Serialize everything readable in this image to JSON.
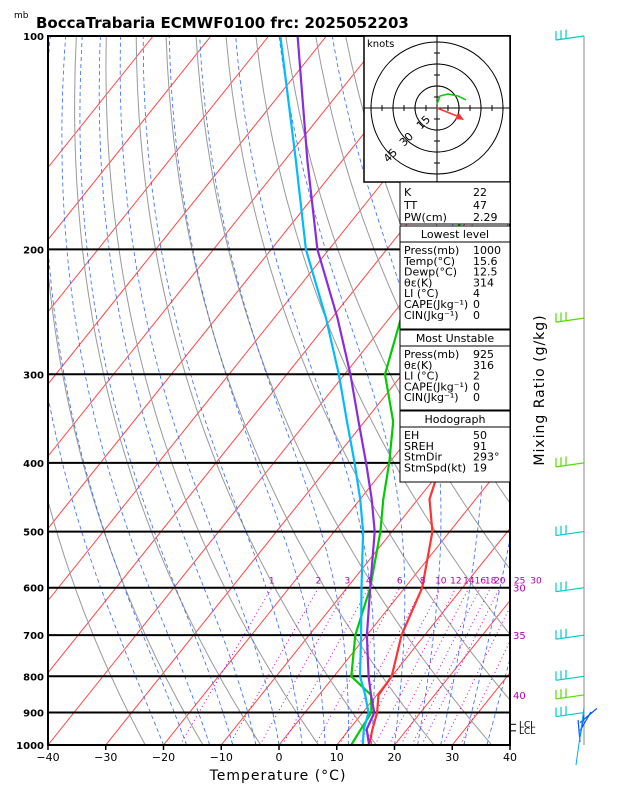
{
  "header": {
    "title": "BoccaTrabaria ECMWF0100 frc: 2025052203",
    "p_unit": "mb"
  },
  "chart_data": {
    "type": "line",
    "xlabel": "Temperature (°C)",
    "ylabel": "Mixing Ratio (g/kg)",
    "xlim": [
      -40,
      40
    ],
    "pressure_range": [
      1000,
      100
    ],
    "x_ticks": [
      "−40",
      "−30",
      "−20",
      "−10",
      "0",
      "10",
      "20",
      "30",
      "40"
    ],
    "p_levels": [
      100,
      200,
      300,
      400,
      500,
      600,
      700,
      800,
      900,
      1000
    ],
    "mixing_ratio_labels": [
      "1",
      "2",
      "3",
      "4",
      "6",
      "8",
      "10",
      "12",
      "14",
      "16",
      "18",
      "20",
      "25",
      "30"
    ],
    "mixing_ratio_values": [
      1,
      2,
      3,
      4,
      6,
      8,
      10,
      12,
      14,
      16,
      18,
      20,
      25,
      30
    ],
    "theta_e_labels": [
      "30",
      "35",
      "40"
    ],
    "lcl_labels": [
      "LCL",
      "LCL"
    ],
    "lcl_pressures": [
      935,
      955
    ],
    "series": [
      {
        "key": "temp",
        "color": "#ff3333",
        "points": [
          [
            15.6,
            1000
          ],
          [
            14,
            950
          ],
          [
            12.5,
            900
          ],
          [
            10.3,
            850
          ],
          [
            10,
            800
          ],
          [
            6,
            700
          ],
          [
            3,
            600
          ],
          [
            -3,
            500
          ],
          [
            -8,
            450
          ],
          [
            -11,
            400
          ],
          [
            -20,
            350
          ],
          [
            -28,
            300
          ],
          [
            -38,
            250
          ],
          [
            -26,
            200
          ],
          [
            -11,
            150
          ],
          [
            7,
            100
          ]
        ]
      },
      {
        "key": "dewp",
        "color": "#00cc00",
        "points": [
          [
            12.5,
            1000
          ],
          [
            12,
            950
          ],
          [
            11.5,
            900
          ],
          [
            9,
            850
          ],
          [
            3,
            800
          ],
          [
            -2,
            700
          ],
          [
            -6,
            600
          ],
          [
            -12,
            500
          ],
          [
            -16,
            450
          ],
          [
            -20,
            400
          ],
          [
            -25,
            350
          ],
          [
            -33,
            300
          ],
          [
            -38,
            250
          ],
          [
            -40,
            200
          ],
          [
            -43,
            150
          ],
          [
            -46,
            100
          ]
        ]
      },
      {
        "key": "parcel",
        "color": "#8a2be2",
        "points": [
          [
            15.6,
            1000
          ],
          [
            13,
            950
          ],
          [
            12,
            900
          ],
          [
            9,
            850
          ],
          [
            6,
            800
          ],
          [
            0,
            700
          ],
          [
            -6,
            600
          ],
          [
            -13,
            500
          ],
          [
            -18,
            450
          ],
          [
            -24,
            400
          ],
          [
            -31,
            350
          ],
          [
            -39,
            300
          ],
          [
            -49,
            250
          ],
          [
            -62,
            200
          ],
          [
            -76,
            150
          ],
          [
            -95,
            100
          ]
        ]
      },
      {
        "key": "virtual",
        "color": "#00bbff",
        "points": [
          [
            14.5,
            1000
          ],
          [
            12.5,
            950
          ],
          [
            11,
            900
          ],
          [
            8,
            850
          ],
          [
            4.5,
            800
          ],
          [
            -1,
            700
          ],
          [
            -7.5,
            600
          ],
          [
            -15,
            500
          ],
          [
            -20,
            450
          ],
          [
            -26,
            400
          ],
          [
            -33,
            350
          ],
          [
            -41,
            300
          ],
          [
            -51,
            250
          ],
          [
            -64,
            200
          ],
          [
            -78,
            150
          ],
          [
            -98,
            100
          ]
        ]
      }
    ]
  },
  "indices": {
    "k_label": "K",
    "k": "22",
    "tt_label": "TT",
    "tt": "47",
    "pw_label": "PW(cm)",
    "pw": "2.29"
  },
  "lowest": {
    "title": "Lowest level",
    "rows": [
      {
        "label": "Press(mb)",
        "value": "1000"
      },
      {
        "label": "Temp(°C)",
        "value": "15.6"
      },
      {
        "label": "Dewp(°C)",
        "value": "12.5"
      },
      {
        "label": "θε(K)",
        "value": "314"
      },
      {
        "label": "LI (°C)",
        "value": "4"
      },
      {
        "label": "CAPE(Jkg⁻¹)",
        "value": "0"
      },
      {
        "label": "CIN(Jkg⁻¹)",
        "value": "0"
      }
    ]
  },
  "unstable": {
    "title": "Most Unstable",
    "rows": [
      {
        "label": "Press(mb)",
        "value": "925"
      },
      {
        "label": "θε(K)",
        "value": "316"
      },
      {
        "label": "LI (°C)",
        "value": "2"
      },
      {
        "label": "CAPE(Jkg⁻¹)",
        "value": "0"
      },
      {
        "label": "CIN(Jkg⁻¹)",
        "value": "0"
      }
    ]
  },
  "hodo_table": {
    "title": "Hodograph",
    "rows": [
      {
        "label": "EH",
        "value": "50"
      },
      {
        "label": "SREH",
        "value": "91"
      },
      {
        "label": "StmDir",
        "value": "293°"
      },
      {
        "label": "StmSpd(kt)",
        "value": "19"
      }
    ]
  },
  "hodograph": {
    "unit": "knots",
    "ring_labels": [
      "15",
      "30",
      "45"
    ]
  },
  "colors": {
    "temperature": "#ff3333",
    "dewpoint": "#00cc00",
    "parcel": "#8a2be2",
    "virtual": "#00bbff",
    "isotherm": "#ff4444",
    "dry_adiabat": "#999999",
    "moist_adiabat": "#3366ff",
    "mixing_ratio": "#cc00cc",
    "barbs": "#00cccc"
  }
}
